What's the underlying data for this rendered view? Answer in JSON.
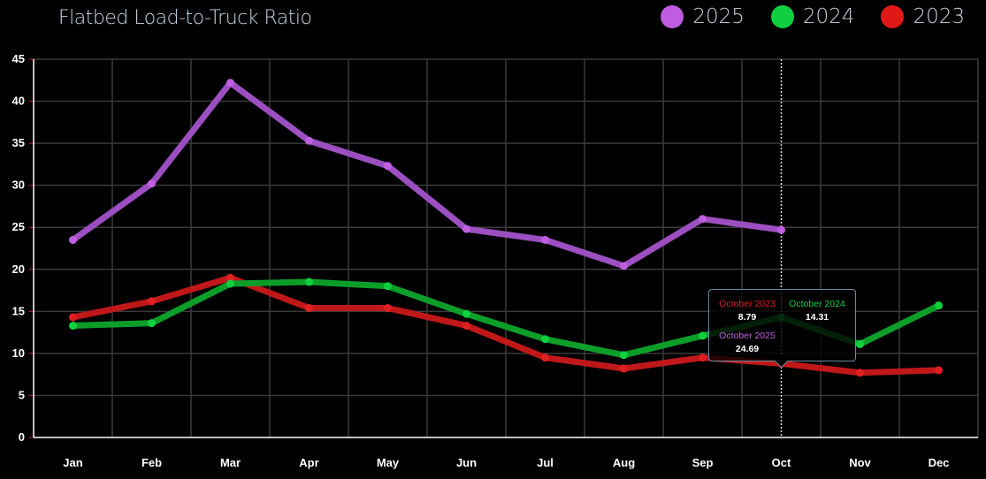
{
  "chart_data": {
    "type": "line",
    "title": "Flatbed Load-to-Truck Ratio",
    "categories": [
      "Jan",
      "Feb",
      "Mar",
      "Apr",
      "May",
      "Jun",
      "Jul",
      "Aug",
      "Sep",
      "Oct",
      "Nov",
      "Dec"
    ],
    "ylim": [
      0,
      45
    ],
    "yticks": [
      "0",
      "5",
      "10",
      "15",
      "20",
      "25",
      "30",
      "35",
      "40",
      "45"
    ],
    "grid": true,
    "legend_position": "top-right",
    "series": [
      {
        "name": "2025",
        "color": "#9b4fc0",
        "point_color": "#c060e0",
        "values": [
          23.5,
          30.2,
          42.2,
          35.3,
          32.3,
          24.8,
          23.5,
          20.4,
          26.0,
          24.69,
          null,
          null
        ]
      },
      {
        "name": "2024",
        "color": "#0d9e2a",
        "point_color": "#10d040",
        "values": [
          13.3,
          13.6,
          18.3,
          18.5,
          18.0,
          14.7,
          11.7,
          9.8,
          12.1,
          14.31,
          11.1,
          15.7
        ]
      },
      {
        "name": "2023",
        "color": "#c01818",
        "point_color": "#e02020",
        "values": [
          14.3,
          16.2,
          19.0,
          15.4,
          15.4,
          13.3,
          9.5,
          8.2,
          9.5,
          8.79,
          7.7,
          8.0
        ]
      }
    ]
  },
  "legend": [
    {
      "label": "2025",
      "color": "#c05ce0"
    },
    {
      "label": "2024",
      "color": "#10d040"
    },
    {
      "label": "2023",
      "color": "#e01818"
    }
  ],
  "tooltip": {
    "month": "Oct",
    "entries": [
      {
        "label": "October 2023",
        "value": "8.79",
        "color": "#e02020"
      },
      {
        "label": "October 2024",
        "value": "14.31",
        "color": "#10d040"
      },
      {
        "label": "October 2025",
        "value": "24.69",
        "color": "#c060e0"
      }
    ]
  }
}
